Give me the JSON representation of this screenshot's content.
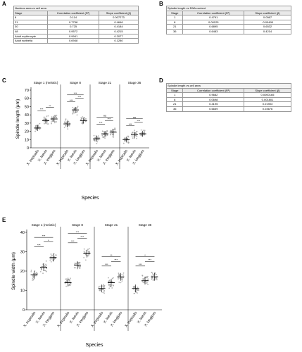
{
  "panels": {
    "A": {
      "letter": "A",
      "title": "Nucleus area vs cell area",
      "headers": [
        "Stage",
        "Correlation coefficient (R²)",
        "Slope coefficient (β)"
      ],
      "rows": [
        [
          "8",
          "0.114",
          "0.007273"
        ],
        [
          "21",
          "0.7758",
          "0.4646"
        ],
        [
          "30",
          "0.725",
          "0.4184"
        ],
        [
          "48",
          "0.9572",
          "0.4215"
        ],
        [
          "Adult erythrocyte",
          "0.9941",
          "0.2077"
        ],
        [
          "Adult epithelia",
          "0.6948",
          "0.1280"
        ]
      ]
    },
    "B": {
      "letter": "B",
      "title": "Spindle length vs DNA content",
      "headers": [
        "Stage",
        "Correlation coefficient (R²)",
        "Slope coefficient (β)"
      ],
      "rows": [
        [
          "1",
          "0.4791",
          "0.0567"
        ],
        [
          "8",
          "0.00125",
          "-0.00495"
        ],
        [
          "21",
          "0.6895",
          "0.6532"
        ],
        [
          "36",
          "0.6483",
          "0.4214"
        ]
      ]
    },
    "C": {
      "letter": "C",
      "ylabel": "Spindle length (μm)",
      "xlabel": "Species",
      "yticks": [
        "0",
        "10",
        "20",
        "30",
        "40",
        "50",
        "60",
        "70"
      ]
    },
    "D": {
      "letter": "D",
      "title": "Spindle length vs cell area",
      "headers": [
        "Stage",
        "Correlation coefficient (R²)",
        "Slope coefficient (β)"
      ],
      "rows": [
        [
          "1",
          "0.9682",
          "0.0000165"
        ],
        [
          "8",
          "0.0698",
          "0.001801"
        ],
        [
          "21",
          "0.4195",
          "0.01903"
        ],
        [
          "36",
          "0.6659",
          "0.03676"
        ]
      ]
    },
    "E": {
      "letter": "E",
      "ylabel": "Spindle width (μm)",
      "xlabel": "Species",
      "yticks": [
        "0",
        "10",
        "20",
        "30",
        "40"
      ]
    }
  },
  "chart_data": [
    {
      "type": "scatter",
      "panel": "C",
      "ylabel": "Spindle length (μm)",
      "xlabel": "Species",
      "ylim": [
        0,
        70
      ],
      "groups": [
        {
          "title": "Stage 1 (meiotic)",
          "categories": [
            "X. tropicalis",
            "X. laevis",
            "X. longipes"
          ],
          "means": [
            24,
            33,
            35
          ],
          "sig": [
            "***",
            "**"
          ]
        },
        {
          "title": "Stage 8",
          "categories": [
            "X. tropicalis",
            "X. laevis",
            "X. longipes"
          ],
          "means": [
            29,
            46,
            33
          ],
          "sig": [
            "***",
            "***",
            "***"
          ]
        },
        {
          "title": "Stage 21",
          "categories": [
            "X. tropicalis",
            "X. laevis",
            "X. longipes"
          ],
          "means": [
            11,
            17,
            19
          ],
          "sig": [
            "***",
            "***",
            "ns"
          ]
        },
        {
          "title": "Stage 36",
          "categories": [
            "X. tropicalis",
            "X. laevis",
            "X. longipes"
          ],
          "means": [
            10,
            16,
            17
          ],
          "sig": [
            "***",
            "***",
            "ns"
          ]
        }
      ]
    },
    {
      "type": "scatter",
      "panel": "E",
      "ylabel": "Spindle width (μm)",
      "xlabel": "Species",
      "ylim": [
        0,
        40
      ],
      "groups": [
        {
          "title": "Stage 1 (meiotic)",
          "categories": [
            "X. tropicalis",
            "X. laevis",
            "X. longipes"
          ],
          "means": [
            18,
            22,
            27
          ],
          "sig": [
            "***",
            "*",
            "***"
          ]
        },
        {
          "title": "Stage 8",
          "categories": [
            "X. tropicalis",
            "X. laevis",
            "X. longipes"
          ],
          "means": [
            14,
            23,
            29
          ],
          "sig": [
            "***",
            "***",
            "***"
          ]
        },
        {
          "title": "Stage 21",
          "categories": [
            "X. tropicalis",
            "X. laevis",
            "X. longipes"
          ],
          "means": [
            11,
            14,
            17
          ],
          "sig": [
            "***",
            "***",
            "**"
          ]
        },
        {
          "title": "Stage 36",
          "categories": [
            "X. tropicalis",
            "X. laevis",
            "X. longipes"
          ],
          "means": [
            11,
            15,
            17
          ],
          "sig": [
            "***",
            "***",
            "*"
          ]
        }
      ]
    }
  ]
}
